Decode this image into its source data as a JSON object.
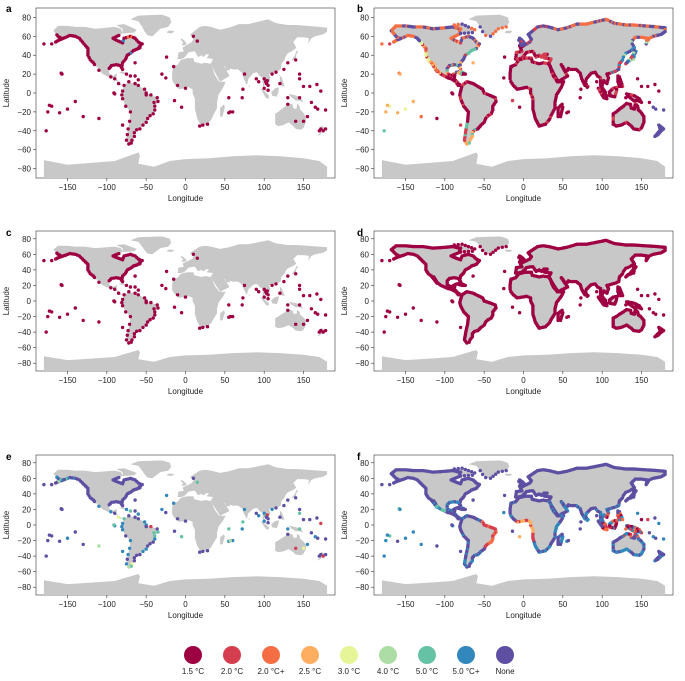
{
  "panels": [
    {
      "id": "a",
      "label": "a"
    },
    {
      "id": "b",
      "label": "b"
    },
    {
      "id": "c",
      "label": "c"
    },
    {
      "id": "d",
      "label": "d"
    },
    {
      "id": "e",
      "label": "e"
    },
    {
      "id": "f",
      "label": "f"
    }
  ],
  "axes": {
    "xlabel": "Longitude",
    "ylabel": "Latitude",
    "xticks": [
      -150,
      -100,
      -50,
      0,
      50,
      100,
      150
    ],
    "yticks": [
      80,
      60,
      40,
      20,
      0,
      -20,
      -40,
      -60,
      -80
    ],
    "xlim": [
      -190,
      190
    ],
    "ylim": [
      -90,
      90
    ]
  },
  "legend": {
    "items": [
      {
        "label": "1.5 °C",
        "color": "#9e0142"
      },
      {
        "label": "2.0 °C",
        "color": "#d53e4f"
      },
      {
        "label": "2.0 °C+",
        "color": "#f46d43"
      },
      {
        "label": "2.5 °C",
        "color": "#fdae61"
      },
      {
        "label": "3.0 °C",
        "color": "#e6f598"
      },
      {
        "label": "4.0 °C",
        "color": "#abdda4"
      },
      {
        "label": "5.0 °C",
        "color": "#66c2a5"
      },
      {
        "label": "5.0 °C+",
        "color": "#3288bd"
      },
      {
        "label": "None",
        "color": "#5e4fa2"
      }
    ]
  },
  "land_color": "#c8c8c8"
}
